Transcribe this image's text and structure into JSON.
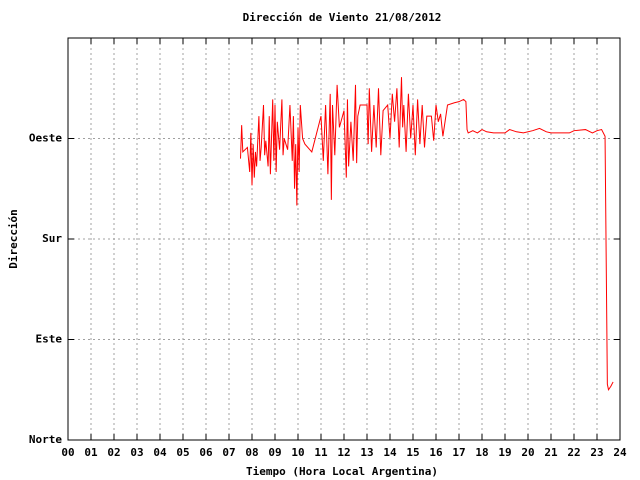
{
  "chart_data": {
    "type": "line",
    "title": "Dirección de Viento 21/08/2012",
    "xlabel": "Tiempo (Hora Local Argentina)",
    "ylabel": "Dirección",
    "xlim": [
      0,
      24
    ],
    "xticks": [
      {
        "value": 0,
        "label": "00"
      },
      {
        "value": 1,
        "label": "01"
      },
      {
        "value": 2,
        "label": "02"
      },
      {
        "value": 3,
        "label": "03"
      },
      {
        "value": 4,
        "label": "04"
      },
      {
        "value": 5,
        "label": "05"
      },
      {
        "value": 6,
        "label": "06"
      },
      {
        "value": 7,
        "label": "07"
      },
      {
        "value": 8,
        "label": "08"
      },
      {
        "value": 9,
        "label": "09"
      },
      10,
      11,
      12,
      13,
      14,
      15,
      16,
      17,
      18,
      19,
      20,
      21,
      22,
      23,
      24
    ],
    "ylim": [
      0,
      360
    ],
    "yticks": [
      {
        "value": 0,
        "label": "Norte"
      },
      {
        "value": 90,
        "label": "Este"
      },
      {
        "value": 180,
        "label": "Sur"
      },
      {
        "value": 270,
        "label": "Oeste"
      }
    ],
    "grid": true,
    "x": [
      7.5,
      7.55,
      7.6,
      7.8,
      7.9,
      7.95,
      8.0,
      8.05,
      8.1,
      8.15,
      8.2,
      8.3,
      8.35,
      8.4,
      8.5,
      8.55,
      8.6,
      8.7,
      8.75,
      8.8,
      8.9,
      8.95,
      9.0,
      9.05,
      9.1,
      9.2,
      9.3,
      9.35,
      9.4,
      9.55,
      9.65,
      9.75,
      9.8,
      9.85,
      9.9,
      9.95,
      10.0,
      10.05,
      10.1,
      10.2,
      10.3,
      10.6,
      11.0,
      11.1,
      11.2,
      11.3,
      11.4,
      11.45,
      11.5,
      11.6,
      11.7,
      11.8,
      12.0,
      12.1,
      12.15,
      12.2,
      12.3,
      12.4,
      12.5,
      12.55,
      12.6,
      12.7,
      13.0,
      13.05,
      13.1,
      13.2,
      13.3,
      13.4,
      13.5,
      13.6,
      13.7,
      13.9,
      14.0,
      14.1,
      14.2,
      14.3,
      14.4,
      14.5,
      14.55,
      14.6,
      14.7,
      14.8,
      14.9,
      15.0,
      15.1,
      15.2,
      15.3,
      15.4,
      15.5,
      15.6,
      15.8,
      15.9,
      16.0,
      16.1,
      16.2,
      16.3,
      16.5,
      16.8,
      17.0,
      17.2,
      17.3,
      17.35,
      17.4,
      17.6,
      17.8,
      18.0,
      18.2,
      18.5,
      19.0,
      19.2,
      19.5,
      19.8,
      20.2,
      20.5,
      20.8,
      21.0,
      21.5,
      21.8,
      22.0,
      22.5,
      22.8,
      23.0,
      23.2,
      23.35,
      23.45,
      23.5,
      23.6,
      23.7
    ],
    "series": [
      {
        "name": "Dirección",
        "color": "#ff0000",
        "values": [
          252,
          282,
          258,
          262,
          240,
          275,
          228,
          265,
          235,
          258,
          245,
          290,
          250,
          262,
          300,
          255,
          268,
          245,
          290,
          238,
          305,
          250,
          300,
          240,
          285,
          260,
          305,
          255,
          270,
          260,
          300,
          250,
          290,
          225,
          265,
          210,
          280,
          240,
          300,
          270,
          265,
          258,
          290,
          250,
          300,
          238,
          310,
          215,
          300,
          255,
          318,
          280,
          295,
          235,
          305,
          245,
          285,
          250,
          318,
          248,
          290,
          300,
          300,
          265,
          315,
          258,
          300,
          262,
          315,
          255,
          295,
          300,
          270,
          310,
          285,
          315,
          262,
          325,
          280,
          300,
          258,
          310,
          270,
          300,
          255,
          305,
          265,
          300,
          262,
          290,
          290,
          268,
          300,
          285,
          292,
          272,
          300,
          302,
          303,
          305,
          303,
          278,
          275,
          277,
          275,
          278,
          276,
          275,
          275,
          278,
          276,
          275,
          277,
          279,
          276,
          275,
          275,
          275,
          277,
          278,
          275,
          277,
          278,
          272,
          50,
          45,
          48,
          52
        ]
      }
    ]
  }
}
